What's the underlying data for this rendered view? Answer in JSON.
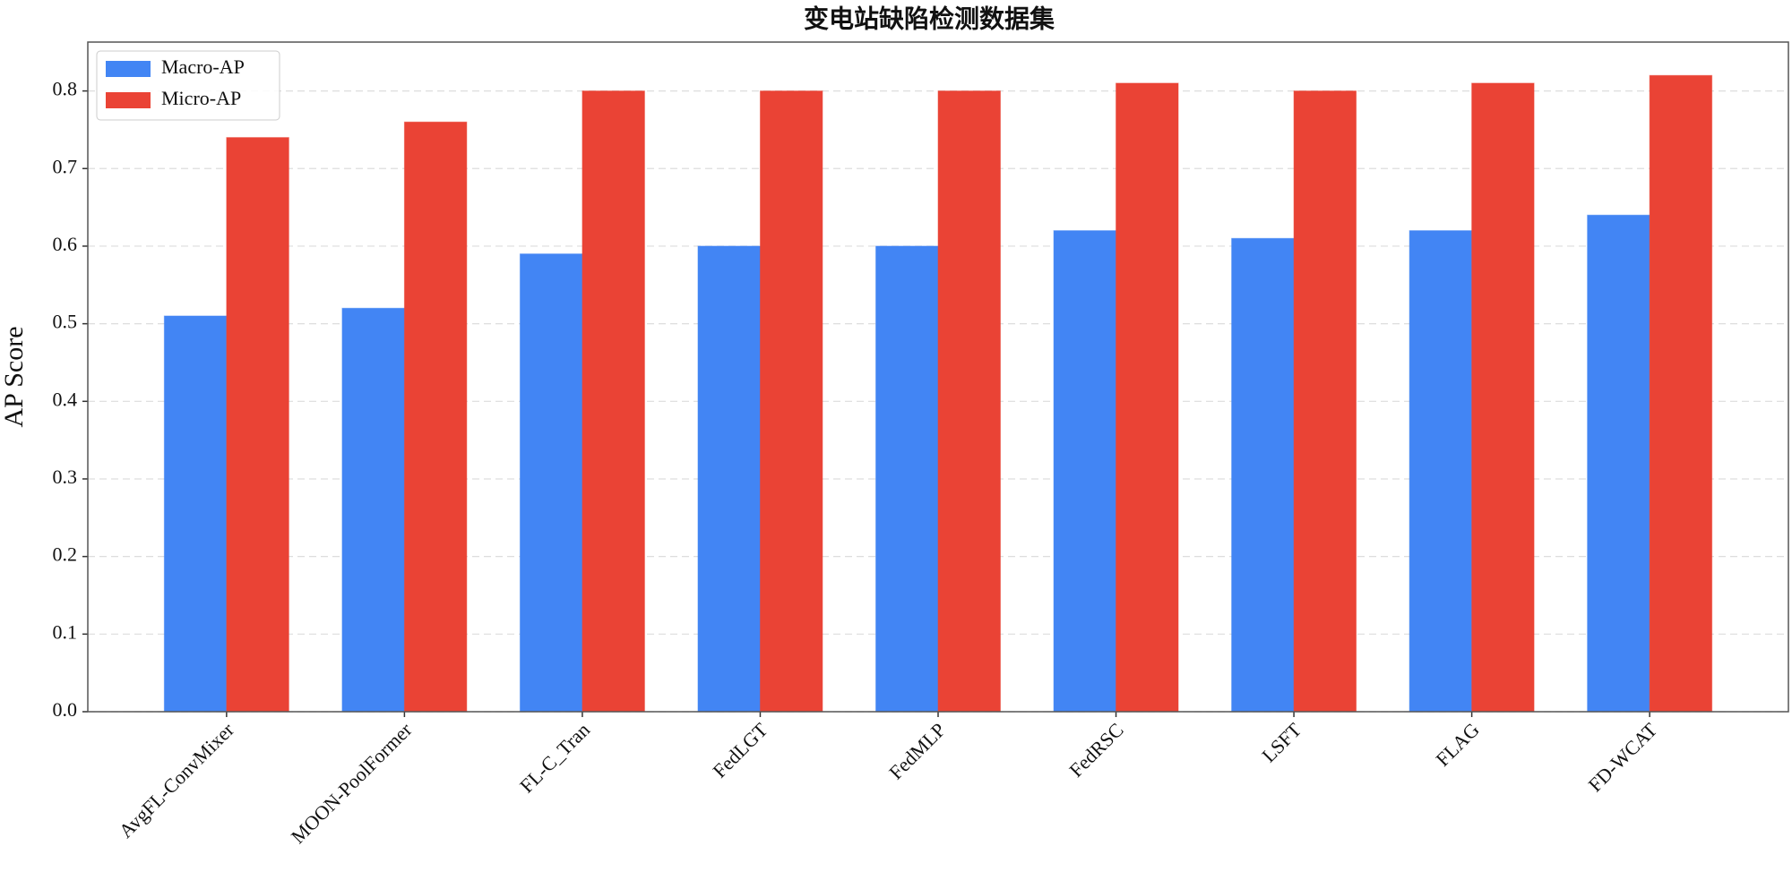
{
  "chart_data": {
    "type": "bar",
    "title": "变电站缺陷检测数据集",
    "y_label": "AP Score",
    "categories": [
      "AvgFL-ConvMixer",
      "MOON-PoolFormer",
      "FL-C_Tran",
      "FedLGT",
      "FedMLP",
      "FedRSC",
      "LSFT",
      "FLAG",
      "FD-WCAT"
    ],
    "series": [
      {
        "name": "Macro-AP",
        "color": "#4285f4",
        "values": [
          0.51,
          0.52,
          0.59,
          0.6,
          0.6,
          0.62,
          0.61,
          0.62,
          0.64
        ]
      },
      {
        "name": "Micro-AP",
        "color": "#ea4335",
        "values": [
          0.74,
          0.76,
          0.8,
          0.8,
          0.8,
          0.81,
          0.8,
          0.81,
          0.82
        ]
      }
    ],
    "ylim": [
      0,
      0.863
    ],
    "yticks": [
      {
        "value": 0,
        "label": "0.0"
      },
      0.1,
      0.2,
      0.3,
      0.4,
      0.5,
      0.6,
      0.7,
      0.8
    ],
    "grid": true,
    "legend": "upper left"
  }
}
